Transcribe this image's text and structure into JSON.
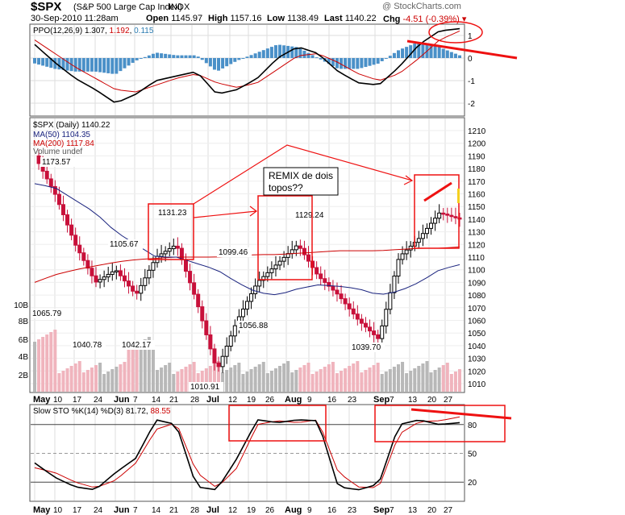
{
  "header": {
    "symbol": "$SPX",
    "name": "(S&P 500 Large Cap Index)",
    "exchange": "INDX",
    "watermark": "@ StockCharts.com",
    "date": "30-Sep-2010 11:28am",
    "open_label": "Open",
    "open": "1145.97",
    "high_label": "High",
    "high": "1157.16",
    "low_label": "Low",
    "low": "1138.49",
    "last_label": "Last",
    "last": "1140.22",
    "chg_label": "Chg",
    "chg": "-4.51 (-0.39%)"
  },
  "ppo_panel": {
    "label": "PPO(12,26,9)",
    "v1": "1.307",
    "v2": "1.192",
    "v3": "0.115",
    "yticks": [
      "1",
      "0",
      "-1",
      "-2"
    ]
  },
  "price_panel": {
    "legend_title": "$SPX (Daily) 1140.22",
    "ma50_label": "MA(50) 1104.35",
    "ma200_label": "MA(200) 1117.84",
    "volume_label": "Volume undef",
    "yticks": [
      "1210",
      "1200",
      "1190",
      "1180",
      "1170",
      "1160",
      "1150",
      "1140",
      "1130",
      "1120",
      "1110",
      "1100",
      "1090",
      "1080",
      "1070",
      "1060",
      "1050",
      "1040",
      "1030",
      "1020",
      "1010"
    ],
    "volume_ticks": [
      "10B",
      "8B",
      "6B",
      "4B",
      "2B"
    ],
    "price_labels": [
      "1173.57",
      "1131.23",
      "1129.24",
      "1105.67",
      "1099.46",
      "1065.79",
      "1040.78",
      "1042.17",
      "1056.88",
      "1039.70",
      "1010.91"
    ],
    "annotation": "REMIX de dois topos??"
  },
  "sto_panel": {
    "label": "Slow STO %K(14) %D(3)",
    "k": "81.72",
    "d": "88.55",
    "yticks": [
      "80",
      "50",
      "20"
    ]
  },
  "x_axis": [
    "May",
    "10",
    "17",
    "24",
    "Jun",
    "7",
    "14",
    "21",
    "28",
    "Jul",
    "12",
    "19",
    "26",
    "Aug",
    "9",
    "16",
    "23",
    "Sep",
    "7",
    "13",
    "20",
    "27"
  ],
  "colors": {
    "up": "#000000",
    "down": "#c8103a",
    "ma50": "#1a237e",
    "ma200": "#cc0000",
    "histo": "#4a90c8",
    "annot": "#ee1111",
    "volume_down": "#f0b4bd",
    "volume_up": "#b8b8b8"
  },
  "chart_data": [
    {
      "type": "line",
      "title": "PPO(12,26,9)",
      "x": [
        "May",
        "10",
        "17",
        "24",
        "Jun",
        "7",
        "14",
        "21",
        "28",
        "Jul",
        "12",
        "19",
        "26",
        "Aug",
        "9",
        "16",
        "23",
        "Sep",
        "7",
        "13",
        "20",
        "27"
      ],
      "series": [
        {
          "name": "PPO",
          "values": [
            0.6,
            -0.2,
            -0.9,
            -1.4,
            -2.0,
            -1.6,
            -1.0,
            -0.8,
            -0.6,
            -1.6,
            -1.4,
            -0.9,
            0.0,
            0.5,
            0.2,
            -0.6,
            -1.1,
            -1.2,
            -0.4,
            0.6,
            1.2,
            1.3
          ]
        },
        {
          "name": "Signal",
          "values": [
            0.8,
            0.2,
            -0.4,
            -0.9,
            -1.4,
            -1.5,
            -1.2,
            -0.9,
            -0.7,
            -1.1,
            -1.3,
            -1.1,
            -0.5,
            0.1,
            0.2,
            -0.2,
            -0.7,
            -1.0,
            -0.7,
            0.0,
            0.8,
            1.2
          ]
        }
      ],
      "ylim": [
        -2.5,
        1.6
      ]
    },
    {
      "type": "bar",
      "title": "$SPX (Daily) 1140.22",
      "x": [
        "May",
        "10",
        "17",
        "24",
        "Jun",
        "7",
        "14",
        "21",
        "28",
        "Jul",
        "12",
        "19",
        "26",
        "Aug",
        "9",
        "16",
        "23",
        "Sep",
        "7",
        "13",
        "20",
        "27"
      ],
      "series": [
        {
          "name": "Close",
          "values": [
            1190,
            1160,
            1120,
            1090,
            1100,
            1080,
            1110,
            1120,
            1075,
            1020,
            1060,
            1090,
            1105,
            1120,
            1095,
            1080,
            1060,
            1045,
            1110,
            1125,
            1145,
            1140
          ]
        },
        {
          "name": "MA(50)",
          "values": [
            1168,
            1165,
            1155,
            1145,
            1130,
            1120,
            1110,
            1110,
            1105,
            1100,
            1090,
            1082,
            1080,
            1085,
            1088,
            1087,
            1085,
            1080,
            1083,
            1090,
            1100,
            1104
          ]
        },
        {
          "name": "MA(200)",
          "values": [
            1090,
            1096,
            1100,
            1103,
            1106,
            1108,
            1109,
            1110,
            1110,
            1110,
            1111,
            1112,
            1112,
            1113,
            1114,
            1115,
            1115,
            1115,
            1116,
            1117,
            1117,
            1118
          ]
        }
      ],
      "ylim": [
        1005,
        1215
      ]
    },
    {
      "type": "line",
      "title": "Slow STO %K(14) %D(3)",
      "x": [
        "May",
        "10",
        "17",
        "24",
        "Jun",
        "7",
        "14",
        "21",
        "28",
        "Jul",
        "12",
        "19",
        "26",
        "Aug",
        "9",
        "16",
        "23",
        "Sep",
        "7",
        "13",
        "20",
        "27"
      ],
      "series": [
        {
          "name": "%K",
          "values": [
            40,
            25,
            15,
            12,
            30,
            45,
            85,
            80,
            15,
            12,
            45,
            85,
            82,
            85,
            84,
            15,
            12,
            18,
            80,
            85,
            80,
            82
          ]
        },
        {
          "name": "%D",
          "values": [
            35,
            30,
            20,
            14,
            22,
            40,
            75,
            82,
            30,
            14,
            35,
            80,
            84,
            82,
            85,
            30,
            15,
            14,
            70,
            83,
            84,
            88
          ]
        }
      ],
      "ylim": [
        0,
        100
      ]
    }
  ]
}
